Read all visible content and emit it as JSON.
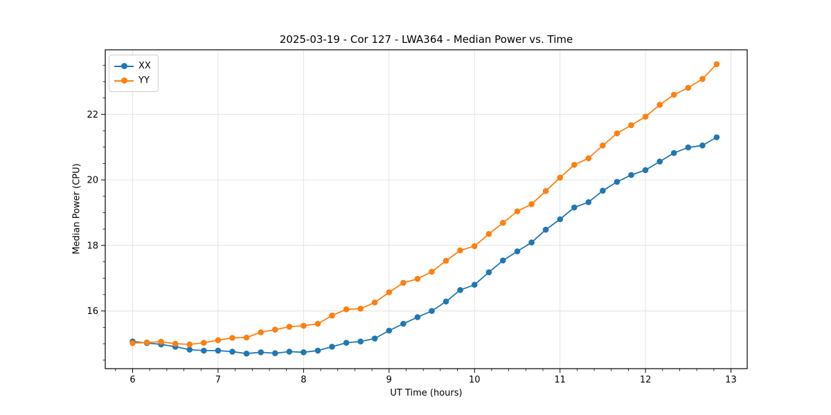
{
  "chart_data": {
    "type": "line",
    "title": "2025-03-19 - Cor 127 - LWA364 - Median Power vs. Time",
    "xlabel": "UT Time (hours)",
    "ylabel": "Median Power (CPU)",
    "x": [
      6.0,
      6.167,
      6.333,
      6.5,
      6.667,
      6.833,
      7.0,
      7.167,
      7.333,
      7.5,
      7.667,
      7.833,
      8.0,
      8.167,
      8.333,
      8.5,
      8.667,
      8.833,
      9.0,
      9.167,
      9.333,
      9.5,
      9.667,
      9.833,
      10.0,
      10.167,
      10.333,
      10.5,
      10.667,
      10.833,
      11.0,
      11.167,
      11.333,
      11.5,
      11.667,
      11.833,
      12.0,
      12.167,
      12.333,
      12.5,
      12.667,
      12.833
    ],
    "series": [
      {
        "name": "XX",
        "color": "#1f77b4",
        "values": [
          15.07,
          15.02,
          14.98,
          14.91,
          14.82,
          14.79,
          14.79,
          14.76,
          14.7,
          14.74,
          14.71,
          14.76,
          14.74,
          14.79,
          14.91,
          15.03,
          15.07,
          15.16,
          15.4,
          15.61,
          15.81,
          16.0,
          16.29,
          16.64,
          16.8,
          17.18,
          17.54,
          17.82,
          18.09,
          18.48,
          18.8,
          19.16,
          19.32,
          19.67,
          19.94,
          20.15,
          20.3,
          20.56,
          20.82,
          20.99,
          21.05,
          21.3
        ]
      },
      {
        "name": "YY",
        "color": "#ff7f0e",
        "values": [
          15.02,
          15.04,
          15.06,
          15.0,
          14.98,
          15.03,
          15.11,
          15.18,
          15.19,
          15.35,
          15.43,
          15.52,
          15.55,
          15.61,
          15.86,
          16.05,
          16.07,
          16.26,
          16.57,
          16.86,
          16.98,
          17.2,
          17.53,
          17.85,
          17.98,
          18.35,
          18.69,
          19.04,
          19.26,
          19.66,
          20.07,
          20.46,
          20.66,
          21.05,
          21.42,
          21.67,
          21.93,
          22.29,
          22.6,
          22.81,
          23.08,
          23.53
        ]
      }
    ],
    "xlim": [
      5.68,
      13.19
    ],
    "ylim": [
      14.24,
      23.97
    ],
    "xticks": [
      6,
      7,
      8,
      9,
      10,
      11,
      12,
      13
    ],
    "yticks": [
      16,
      18,
      20,
      22
    ],
    "x_minor_step": 0.2,
    "y_minor_step": 0.5,
    "grid": true,
    "legend_position": "upper-left"
  },
  "colors": {
    "background": "#ffffff",
    "grid": "#e0e0e0",
    "spine": "#000000",
    "tick_text": "#000000"
  }
}
